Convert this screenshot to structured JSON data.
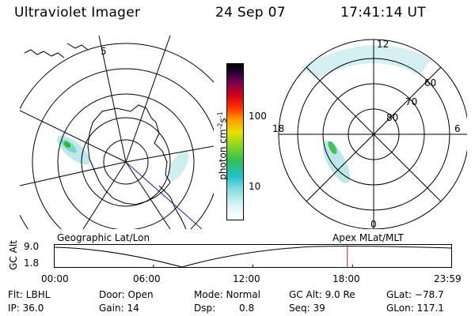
{
  "header": {
    "title": "Ultraviolet Imager",
    "date": "24 Sep 07",
    "time": "17:41:14 UT"
  },
  "geo_map": {
    "longitude_label": "5"
  },
  "colorbar": {
    "label_main": "photon cm",
    "label_sup1": "-2",
    "label_mid": "s",
    "label_sup2": "-1",
    "ticks": [
      "100",
      "10"
    ]
  },
  "polar_map": {
    "mlt_labels": {
      "top": "12",
      "left": "18",
      "right": "6",
      "bottom": "0"
    },
    "lat_labels": [
      "60",
      "70",
      "80"
    ]
  },
  "timeline": {
    "left_title": "Geographic Lat/Lon",
    "right_title": "Apex MLat/MLT",
    "axis_label": "GC Alt",
    "y_max_label": "9.0",
    "y_min_label": "1.8",
    "ticks": [
      "00:00",
      "06:00",
      "12:00",
      "18:00",
      "23:59"
    ],
    "marker_color": "#cc2222"
  },
  "info": {
    "flt": "Flt: LBHL",
    "door": "Door: Open",
    "mode": "Mode: Normal",
    "gcalt": "GC Alt: 9.0 Re",
    "glat": "GLat: −78.7",
    "ip": "IP: 36.0",
    "gain": "Gain: 14",
    "dsp_label": "Dsp:",
    "dsp_value": "0.8",
    "seq": "Seq: 39",
    "glon": "GLon: 117.1"
  }
}
